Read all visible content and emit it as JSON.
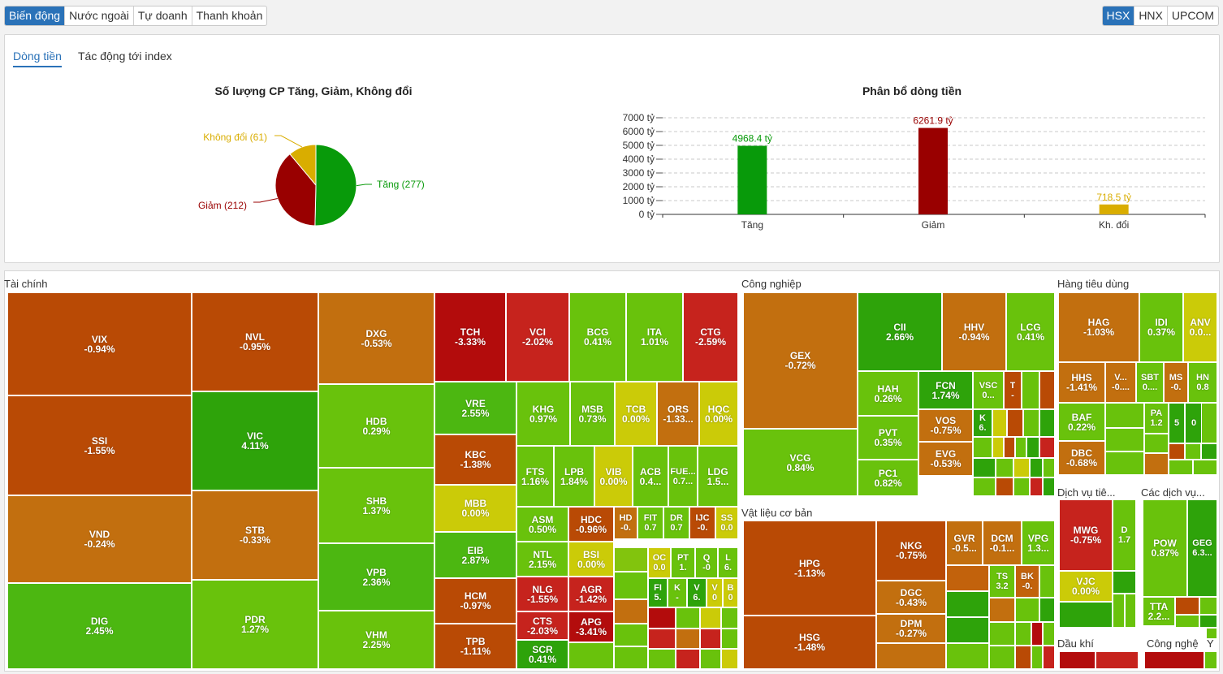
{
  "top_tabs": [
    "Biến động",
    "Nước ngoài",
    "Tự doanh",
    "Thanh khoản"
  ],
  "exchange_tabs": [
    "HSX",
    "HNX",
    "UPCOM"
  ],
  "sub_tabs": [
    "Dòng tiền",
    "Tác động tới index"
  ],
  "colors": {
    "up": "#089a0a",
    "down": "#990000",
    "flat": "#d9ad00",
    "accent": "#2a72b8"
  },
  "chart_data": [
    {
      "type": "pie",
      "title": "Số lượng CP Tăng, Giảm, Không đổi",
      "slices": [
        {
          "label": "Tăng (277)",
          "value": 277,
          "color": "#089a0a"
        },
        {
          "label": "Giảm (212)",
          "value": 212,
          "color": "#990000"
        },
        {
          "label": "Không đổi (61)",
          "value": 61,
          "color": "#d9ad00"
        }
      ]
    },
    {
      "type": "bar",
      "title": "Phân bổ dòng tiền",
      "categories": [
        "Tăng",
        "Giảm",
        "Kh. đổi"
      ],
      "values": [
        4968.4,
        6261.9,
        718.5
      ],
      "labels": [
        "4968.4 tỷ",
        "6261.9 tỷ",
        "718.5 tỷ"
      ],
      "colors": [
        "#089a0a",
        "#990000",
        "#d9ad00"
      ],
      "yticks": [
        "0 tỷ",
        "1000 tỷ",
        "2000 tỷ",
        "3000 tỷ",
        "4000 tỷ",
        "5000 tỷ",
        "6000 tỷ",
        "7000 tỷ"
      ],
      "ylim": [
        0,
        7000
      ],
      "grid": true
    }
  ],
  "sectors": [
    "Tài chính",
    "Công nghiệp",
    "Hàng tiêu dùng",
    "Vật liệu cơ bản",
    "Dịch vụ tiê...",
    "Các dịch vụ...",
    "Dầu khí",
    "Công nghệ",
    "Y"
  ],
  "stocks": [
    [
      "VIX",
      "-0.94%"
    ],
    [
      "SSI",
      "-1.55%"
    ],
    [
      "VND",
      "-0.24%"
    ],
    [
      "DIG",
      "2.45%"
    ],
    [
      "NVL",
      "-0.95%"
    ],
    [
      "VIC",
      "4.11%"
    ],
    [
      "STB",
      "-0.33%"
    ],
    [
      "PDR",
      "1.27%"
    ],
    [
      "DXG",
      "-0.53%"
    ],
    [
      "HDB",
      "0.29%"
    ],
    [
      "SHB",
      "1.37%"
    ],
    [
      "VPB",
      "2.36%"
    ],
    [
      "VHM",
      "2.25%"
    ],
    [
      "TCH",
      "-3.33%"
    ],
    [
      "VCI",
      "-2.02%"
    ],
    [
      "BCG",
      "0.41%"
    ],
    [
      "ITA",
      "1.01%"
    ],
    [
      "CTG",
      "-2.59%"
    ],
    [
      "VRE",
      "2.55%"
    ],
    [
      "KBC",
      "-1.38%"
    ],
    [
      "MBB",
      "0.00%"
    ],
    [
      "EIB",
      "2.87%"
    ],
    [
      "HCM",
      "-0.97%"
    ],
    [
      "TPB",
      "-1.11%"
    ],
    [
      "KHG",
      "0.97%"
    ],
    [
      "MSB",
      "0.73%"
    ],
    [
      "TCB",
      "0.00%"
    ],
    [
      "ORS",
      "-1.33..."
    ],
    [
      "HQC",
      "0.00%"
    ],
    [
      "FTS",
      "1.16%"
    ],
    [
      "LPB",
      "1.84%"
    ],
    [
      "VIB",
      "0.00%"
    ],
    [
      "ACB",
      "0.4..."
    ],
    [
      "FUE...",
      "0.7..."
    ],
    [
      "LDG",
      "1.5..."
    ],
    [
      "ASM",
      "0.50%"
    ],
    [
      "HDC",
      "-0.96%"
    ],
    [
      "HD",
      "-0."
    ],
    [
      "FIT",
      "0.7"
    ],
    [
      "DR",
      "0.7"
    ],
    [
      "IJC",
      "-0."
    ],
    [
      "SS",
      "0.0"
    ],
    [
      "NTL",
      "2.15%"
    ],
    [
      "BSI",
      "0.00%"
    ],
    [
      "OC",
      "0.0"
    ],
    [
      "PT",
      "1."
    ],
    [
      "Q",
      "-0"
    ],
    [
      "L",
      "6."
    ],
    [
      "NLG",
      "-1.55%"
    ],
    [
      "AGR",
      "-1.42%"
    ],
    [
      "FI",
      "5."
    ],
    [
      "K",
      "-"
    ],
    [
      "V",
      "6."
    ],
    [
      "V",
      "0"
    ],
    [
      "B",
      "0"
    ],
    [
      "CTS",
      "-2.03%"
    ],
    [
      "APG",
      "-3.41%"
    ],
    [
      "SCR",
      "0.41%"
    ],
    [
      "GEX",
      "-0.72%"
    ],
    [
      "VCG",
      "0.84%"
    ],
    [
      "CII",
      "2.66%"
    ],
    [
      "HHV",
      "-0.94%"
    ],
    [
      "LCG",
      "0.41%"
    ],
    [
      "HAH",
      "0.26%"
    ],
    [
      "FCN",
      "1.74%"
    ],
    [
      "VSC",
      "0..."
    ],
    [
      "T",
      "-"
    ],
    [
      "PVT",
      "0.35%"
    ],
    [
      "VOS",
      "-0.75%"
    ],
    [
      "K",
      "6."
    ],
    [
      "PC1",
      "0.82%"
    ],
    [
      "EVG",
      "-0.53%"
    ],
    [
      "HPG",
      "-1.13%"
    ],
    [
      "HSG",
      "-1.48%"
    ],
    [
      "NKG",
      "-0.75%"
    ],
    [
      "DGC",
      "-0.43%"
    ],
    [
      "DPM",
      "-0.27%"
    ],
    [
      "GVR",
      "-0.5..."
    ],
    [
      "DCM",
      "-0.1..."
    ],
    [
      "VPG",
      "1.3..."
    ],
    [
      "TS",
      "3.2"
    ],
    [
      "BK",
      "-0."
    ],
    [
      "HAG",
      "-1.03%"
    ],
    [
      "IDI",
      "0.37%"
    ],
    [
      "ANV",
      "0.0..."
    ],
    [
      "HHS",
      "-1.41%"
    ],
    [
      "V...",
      "-0...."
    ],
    [
      "SBT",
      "0...."
    ],
    [
      "MS",
      "-0."
    ],
    [
      "HN",
      "0.8"
    ],
    [
      "BAF",
      "0.22%"
    ],
    [
      "PA",
      "1.2"
    ],
    [
      "5",
      ""
    ],
    [
      "0",
      ""
    ],
    [
      "DBC",
      "-0.68%"
    ],
    [
      "MWG",
      "-0.75%"
    ],
    [
      "D",
      "1.7"
    ],
    [
      "VJC",
      "0.00%"
    ],
    [
      "POW",
      "0.87%"
    ],
    [
      "GEG",
      "6.3..."
    ],
    [
      "TTA",
      "2.2..."
    ]
  ]
}
